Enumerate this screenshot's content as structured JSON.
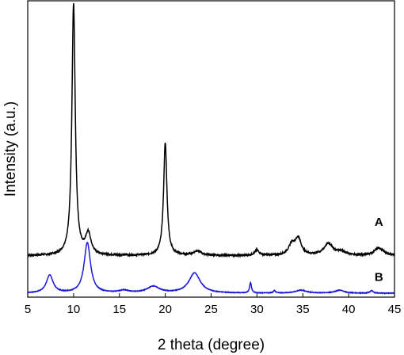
{
  "chart_data": {
    "type": "line",
    "title": "",
    "xlabel": "2 theta (degree)",
    "ylabel": "Intensity (a.u.)",
    "xlim": [
      5,
      45
    ],
    "ylim": [
      0,
      100
    ],
    "y_tick_labels_shown": false,
    "grid": false,
    "legend": "none",
    "x_ticks": [
      5,
      10,
      15,
      20,
      25,
      30,
      35,
      40,
      45
    ],
    "series": [
      {
        "name": "A",
        "color": "#000000",
        "baseline": 14,
        "noise": 0.5,
        "label_position": [
          43.3,
          24
        ],
        "peaks": [
          {
            "x": 10.0,
            "height": 85,
            "width": 0.22
          },
          {
            "x": 11.6,
            "height": 7,
            "width": 0.35
          },
          {
            "x": 20.0,
            "height": 38,
            "width": 0.22
          },
          {
            "x": 23.5,
            "height": 1.5,
            "width": 0.5
          },
          {
            "x": 30.0,
            "height": 1.8,
            "width": 0.3
          },
          {
            "x": 33.8,
            "height": 3.5,
            "width": 0.4
          },
          {
            "x": 34.5,
            "height": 5.5,
            "width": 0.4
          },
          {
            "x": 37.8,
            "height": 4,
            "width": 0.6
          },
          {
            "x": 39.2,
            "height": 1.2,
            "width": 0.5
          },
          {
            "x": 43.3,
            "height": 2.5,
            "width": 0.6
          }
        ]
      },
      {
        "name": "B",
        "color": "#1a1ad6",
        "baseline": 1.3,
        "noise": 0.2,
        "label_position": [
          43.3,
          5.5
        ],
        "peaks": [
          {
            "x": 7.4,
            "height": 6,
            "width": 0.45
          },
          {
            "x": 11.5,
            "height": 17,
            "width": 0.42
          },
          {
            "x": 15.5,
            "height": 0.8,
            "width": 0.7
          },
          {
            "x": 18.7,
            "height": 2.2,
            "width": 0.8
          },
          {
            "x": 23.2,
            "height": 6.8,
            "width": 0.75
          },
          {
            "x": 29.3,
            "height": 3.5,
            "width": 0.12
          },
          {
            "x": 31.9,
            "height": 0.8,
            "width": 0.15
          },
          {
            "x": 34.8,
            "height": 1.0,
            "width": 0.7
          },
          {
            "x": 39.0,
            "height": 1.0,
            "width": 0.6
          },
          {
            "x": 42.5,
            "height": 0.9,
            "width": 0.2
          }
        ]
      }
    ]
  }
}
